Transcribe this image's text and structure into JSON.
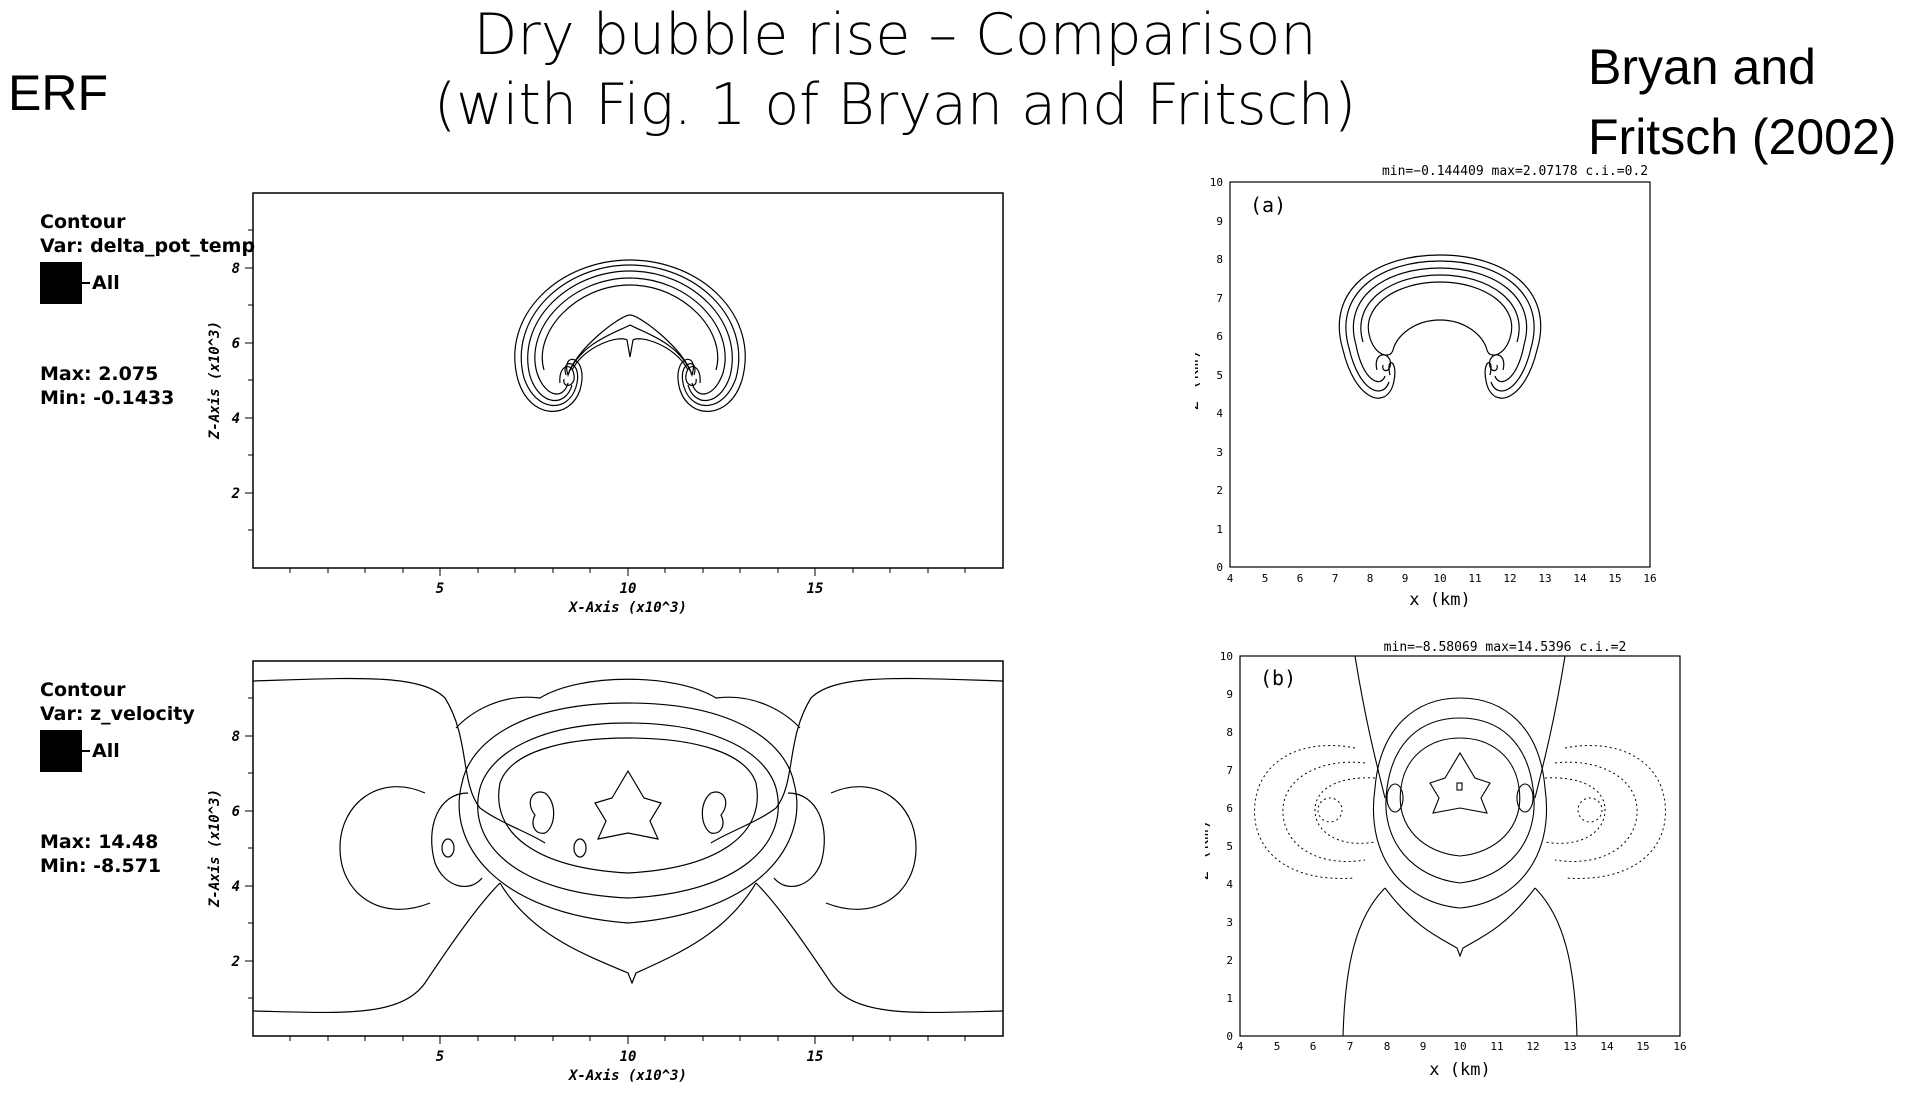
{
  "title": {
    "line1": "Dry bubble rise – Comparison",
    "line2": "(with Fig. 1 of Bryan and Fritsch)"
  },
  "left_label": "ERF",
  "right_label": {
    "line1": "Bryan and",
    "line2": "Fritsch (2002)"
  },
  "erf_top": {
    "contour": "Contour",
    "var": "Var: delta_pot_temp",
    "legend": "All",
    "max": "Max:  2.075",
    "min": "Min: -0.1433",
    "xlabel": "X-Axis (x10^3)",
    "ylabel": "Z-Axis (x10^3)",
    "xticks": [
      "5",
      "10",
      "15"
    ],
    "yticks": [
      "2",
      "4",
      "6",
      "8"
    ]
  },
  "erf_bottom": {
    "contour": "Contour",
    "var": "Var: z_velocity",
    "legend": "All",
    "max": "Max:  14.48",
    "min": "Min: -8.571",
    "xlabel": "X-Axis (x10^3)",
    "ylabel": "Z-Axis (x10^3)",
    "xticks": [
      "5",
      "10",
      "15"
    ],
    "yticks": [
      "2",
      "4",
      "6",
      "8"
    ]
  },
  "bf_top": {
    "header": "min=−0.144409    max=2.07178    c.i.=0.2",
    "panel": "(a)",
    "xlabel": "x (km)",
    "ylabel": "z (km)",
    "xticks": [
      "4",
      "5",
      "6",
      "7",
      "8",
      "9",
      "10",
      "11",
      "12",
      "13",
      "14",
      "15",
      "16"
    ],
    "yticks": [
      "0",
      "1",
      "2",
      "3",
      "4",
      "5",
      "6",
      "7",
      "8",
      "9",
      "10"
    ]
  },
  "bf_bottom": {
    "header": "min=−8.58069    max=14.5396    c.i.=2",
    "panel": "(b)",
    "xlabel": "x (km)",
    "ylabel": "z (km)",
    "xticks": [
      "4",
      "5",
      "6",
      "7",
      "8",
      "9",
      "10",
      "11",
      "12",
      "13",
      "14",
      "15",
      "16"
    ],
    "yticks": [
      "0",
      "1",
      "2",
      "3",
      "4",
      "5",
      "6",
      "7",
      "8",
      "9",
      "10"
    ]
  }
}
